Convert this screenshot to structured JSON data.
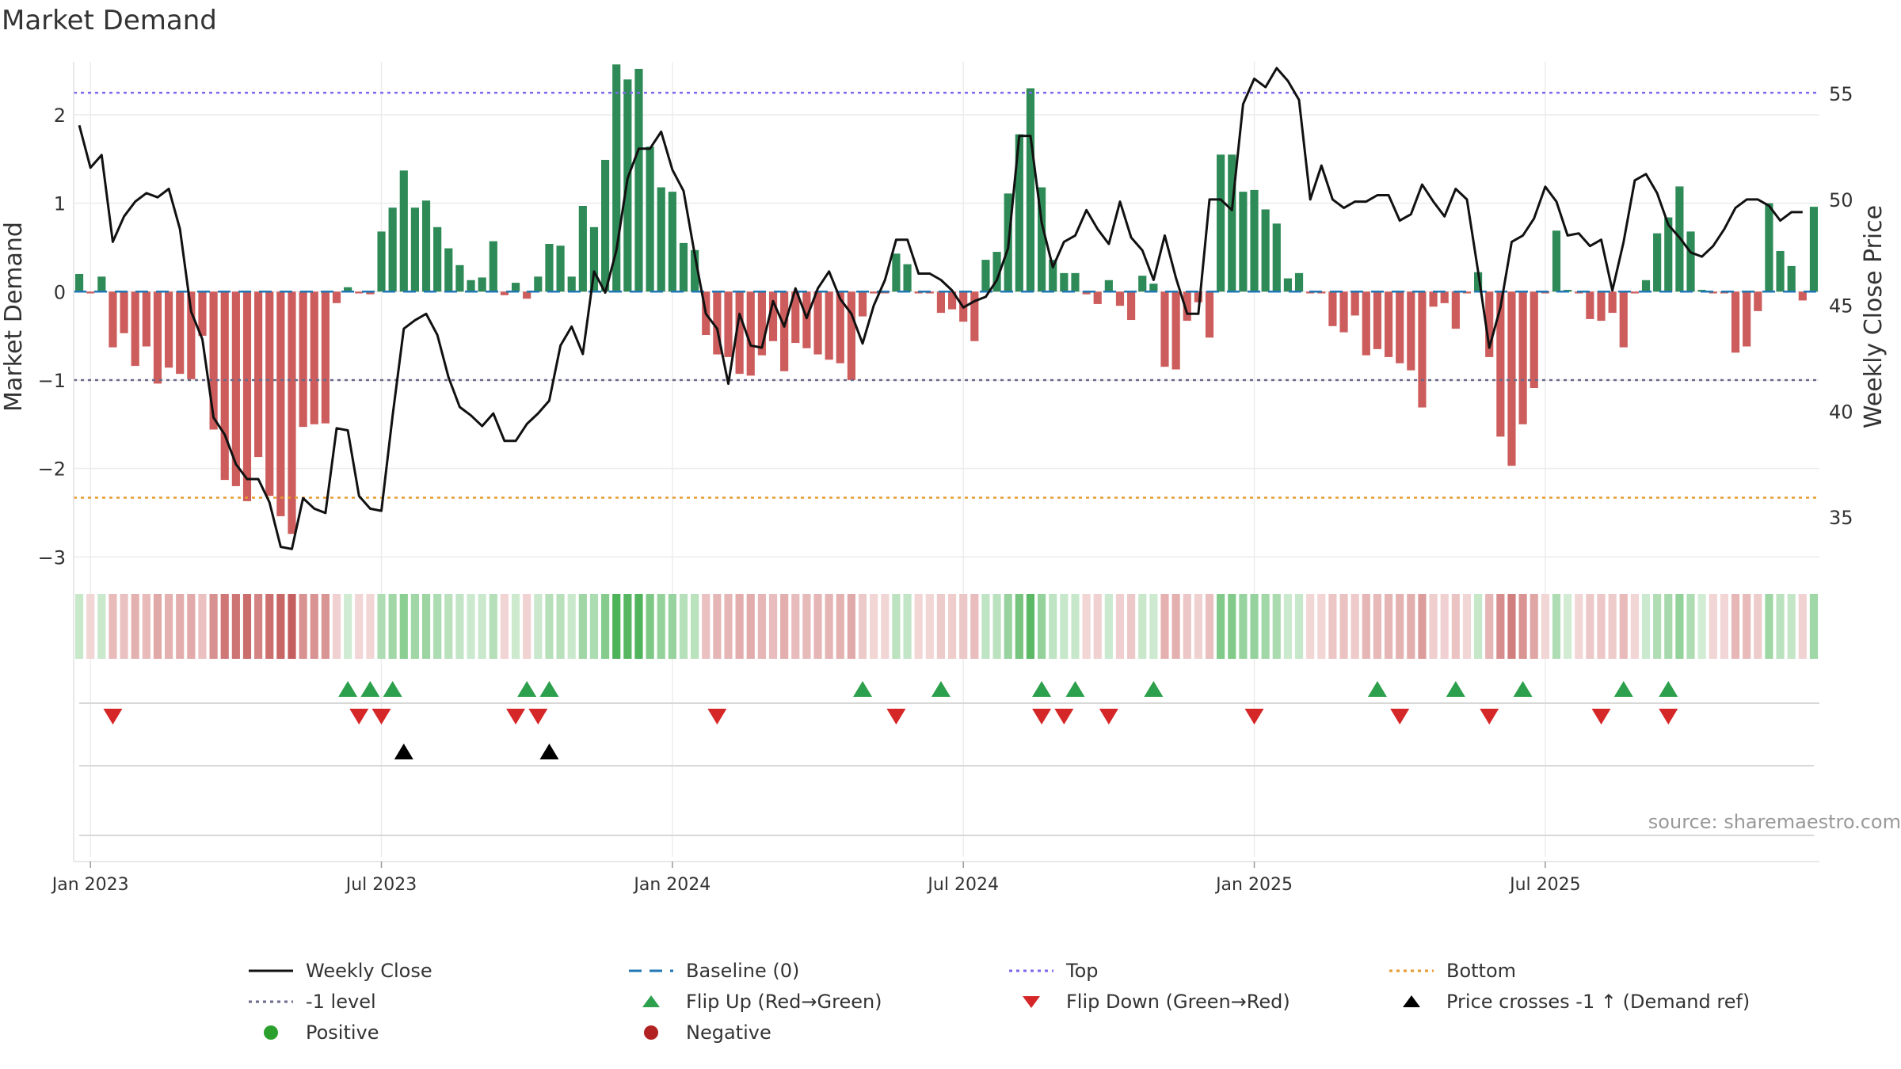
{
  "title": "Market Demand",
  "source_text": "source: sharemaestro.com",
  "colors": {
    "positive": "#2e8b57",
    "negative": "#cd5c5c",
    "close": "#111111",
    "top": "#7b68ee",
    "bottom": "#e69a2e",
    "level": "#6a6a8a",
    "baseline": "#1f77b4",
    "flip_up": "#2ca04c",
    "flip_down": "#d62728",
    "cross": "#000000"
  },
  "legend": [
    {
      "key": "close",
      "label": "Weekly Close",
      "icon": "solid-line-icon"
    },
    {
      "key": "baseline",
      "label": "Baseline (0)",
      "icon": "dashed-line-icon"
    },
    {
      "key": "top",
      "label": "Top",
      "icon": "dotted-line-icon"
    },
    {
      "key": "bottom",
      "label": "Bottom",
      "icon": "dotted-line-icon"
    },
    {
      "key": "level",
      "label": "-1 level",
      "icon": "dotted-line-icon"
    },
    {
      "key": "flip_up",
      "label": "Flip Up (Red→Green)",
      "icon": "triangle-up-icon"
    },
    {
      "key": "flip_down",
      "label": "Flip Down (Green→Red)",
      "icon": "triangle-down-icon"
    },
    {
      "key": "cross",
      "label": "Price crosses -1 ↑ (Demand ref)",
      "icon": "triangle-up-icon"
    },
    {
      "key": "positive",
      "label": "Positive",
      "icon": "circle-icon"
    },
    {
      "key": "negative",
      "label": "Negative",
      "icon": "circle-icon"
    }
  ],
  "chart_data": {
    "type": "bar",
    "title": "Market Demand",
    "ylabel": "Market Demand",
    "y2label": "Weekly Close Price",
    "ylim": [
      -3.15,
      2.6
    ],
    "y2lim": [
      32.5,
      56.5
    ],
    "yticks": [
      2,
      1,
      0,
      -1,
      -2,
      -3
    ],
    "ytick_labels": [
      "2",
      "1",
      "0",
      "−1",
      "−2",
      "−3"
    ],
    "y2ticks": [
      55,
      50,
      45,
      40,
      35
    ],
    "y2tick_labels": [
      "55",
      "50",
      "45",
      "40",
      "35"
    ],
    "x_start": "2022-12-26",
    "x_step_weeks": 1,
    "xticks": [
      {
        "week": 1,
        "label": "Jan 2023"
      },
      {
        "week": 27,
        "label": "Jul 2023"
      },
      {
        "week": 53,
        "label": "Jan 2024"
      },
      {
        "week": 79,
        "label": "Jul 2024"
      },
      {
        "week": 105,
        "label": "Jan 2025"
      },
      {
        "week": 131,
        "label": "Jul 2025"
      }
    ],
    "ref_lines": {
      "top": 2.25,
      "bottom": -2.33,
      "level": -1,
      "baseline": 0
    },
    "demand": [
      0.2,
      -0.02,
      0.17,
      -0.63,
      -0.47,
      -0.84,
      -0.62,
      -1.04,
      -0.86,
      -0.93,
      -0.99,
      -0.5,
      -1.56,
      -2.13,
      -2.2,
      -2.37,
      -1.87,
      -2.31,
      -2.54,
      -2.74,
      -1.53,
      -1.5,
      -1.49,
      -0.13,
      0.05,
      -0.02,
      -0.03,
      0.68,
      0.95,
      1.37,
      0.95,
      1.03,
      0.73,
      0.49,
      0.3,
      0.13,
      0.16,
      0.57,
      -0.04,
      0.1,
      -0.08,
      0.17,
      0.54,
      0.52,
      0.17,
      0.97,
      0.73,
      1.49,
      2.57,
      2.4,
      2.52,
      1.64,
      1.18,
      1.13,
      0.55,
      0.47,
      -0.49,
      -0.71,
      -0.74,
      -0.93,
      -0.95,
      -0.72,
      -0.56,
      -0.9,
      -0.58,
      -0.64,
      -0.71,
      -0.77,
      -0.81,
      -1.0,
      -0.28,
      -0.02,
      -0.02,
      0.43,
      0.31,
      -0.02,
      -0.02,
      -0.24,
      -0.2,
      -0.34,
      -0.56,
      0.36,
      0.45,
      1.11,
      1.78,
      2.3,
      1.18,
      0.36,
      0.21,
      0.21,
      -0.03,
      -0.14,
      0.13,
      -0.16,
      -0.32,
      0.18,
      0.09,
      -0.85,
      -0.88,
      -0.33,
      -0.12,
      -0.52,
      1.55,
      1.55,
      1.13,
      1.15,
      0.93,
      0.77,
      0.15,
      0.21,
      -0.02,
      -0.02,
      -0.39,
      -0.46,
      -0.27,
      -0.72,
      -0.65,
      -0.74,
      -0.81,
      -0.89,
      -1.31,
      -0.17,
      -0.13,
      -0.42,
      -0.02,
      0.22,
      -0.74,
      -1.64,
      -1.97,
      -1.5,
      -1.09,
      -0.02,
      0.69,
      0.02,
      -0.02,
      -0.31,
      -0.33,
      -0.24,
      -0.63,
      -0.02,
      0.13,
      0.66,
      0.84,
      1.19,
      0.68,
      0.02,
      -0.02,
      -0.02,
      -0.69,
      -0.62,
      -0.22,
      1.0,
      0.46,
      0.29,
      -0.1,
      0.96
    ],
    "close": [
      53.5,
      51.5,
      52.1,
      48.0,
      49.2,
      49.9,
      50.3,
      50.1,
      50.5,
      48.6,
      44.7,
      43.4,
      39.7,
      38.9,
      37.5,
      36.8,
      36.8,
      35.7,
      33.6,
      33.5,
      35.9,
      35.4,
      35.2,
      39.2,
      39.1,
      36.0,
      35.4,
      35.3,
      39.8,
      43.9,
      44.3,
      44.6,
      43.6,
      41.6,
      40.2,
      39.8,
      39.3,
      39.9,
      38.6,
      38.6,
      39.4,
      39.9,
      40.5,
      43.1,
      44.0,
      42.7,
      46.6,
      45.6,
      47.6,
      51.0,
      52.4,
      52.4,
      53.2,
      51.4,
      50.4,
      47.4,
      44.6,
      43.9,
      41.3,
      44.6,
      43.1,
      43.0,
      45.2,
      44.0,
      45.8,
      44.4,
      45.8,
      46.6,
      45.3,
      44.6,
      43.2,
      45.0,
      46.2,
      48.1,
      48.1,
      46.5,
      46.5,
      46.2,
      45.7,
      44.9,
      45.2,
      45.4,
      46.2,
      47.7,
      53.0,
      53.0,
      48.9,
      46.8,
      48.0,
      48.3,
      49.5,
      48.6,
      47.9,
      49.9,
      48.2,
      47.6,
      46.2,
      48.3,
      46.3,
      44.6,
      44.6,
      50.0,
      50.0,
      49.5,
      54.5,
      55.7,
      55.3,
      56.2,
      55.6,
      54.7,
      50.0,
      51.6,
      50.0,
      49.6,
      49.9,
      49.9,
      50.2,
      50.2,
      49.0,
      49.3,
      50.7,
      49.9,
      49.2,
      50.5,
      50.0,
      46.6,
      43.0,
      44.9,
      48.0,
      48.3,
      49.1,
      50.6,
      49.9,
      48.3,
      48.4,
      47.8,
      48.1,
      45.7,
      48.0,
      50.9,
      51.2,
      50.3,
      48.8,
      48.2,
      47.5,
      47.3,
      47.8,
      48.6,
      49.6,
      50.0,
      50.0,
      49.7,
      49.0,
      49.4,
      49.4
    ],
    "flip_up_weeks": [
      24,
      26,
      28,
      40,
      42,
      70,
      77,
      86,
      89,
      96,
      116,
      123,
      129,
      138,
      142
    ],
    "flip_down_weeks": [
      3,
      25,
      27,
      39,
      41,
      57,
      73,
      86,
      88,
      92,
      105,
      118,
      126,
      136,
      142
    ],
    "price_cross_weeks": [
      29,
      42
    ]
  }
}
